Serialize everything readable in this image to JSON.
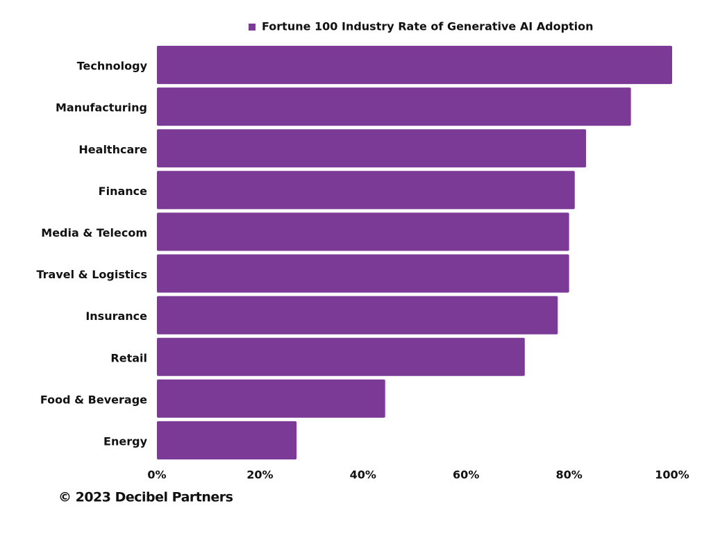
{
  "chart_data": {
    "type": "bar",
    "orientation": "horizontal",
    "categories": [
      "Technology",
      "Manufacturing",
      "Healthcare",
      "Finance",
      "Media & Telecom",
      "Travel & Logistics",
      "Insurance",
      "Retail",
      "Food & Beverage",
      "Energy"
    ],
    "series": [
      {
        "name": "Fortune 100 Industry Rate of Generative AI Adoption",
        "color": "#7b3a96",
        "values": [
          100,
          92,
          83.3,
          81.1,
          80,
          80,
          77.8,
          71.4,
          44.3,
          27.1
        ]
      }
    ],
    "xlim": [
      0,
      100
    ],
    "xticks": [
      {
        "value": 0,
        "label": "0%"
      },
      {
        "value": 20,
        "label": "20%"
      },
      {
        "value": 40,
        "label": "40%"
      },
      {
        "value": 60,
        "label": "60%"
      },
      {
        "value": 80,
        "label": "80%"
      },
      {
        "value": 100,
        "label": "100%"
      }
    ],
    "grid": false,
    "legend": "top"
  },
  "footer": "© 2023 Decibel Partners"
}
